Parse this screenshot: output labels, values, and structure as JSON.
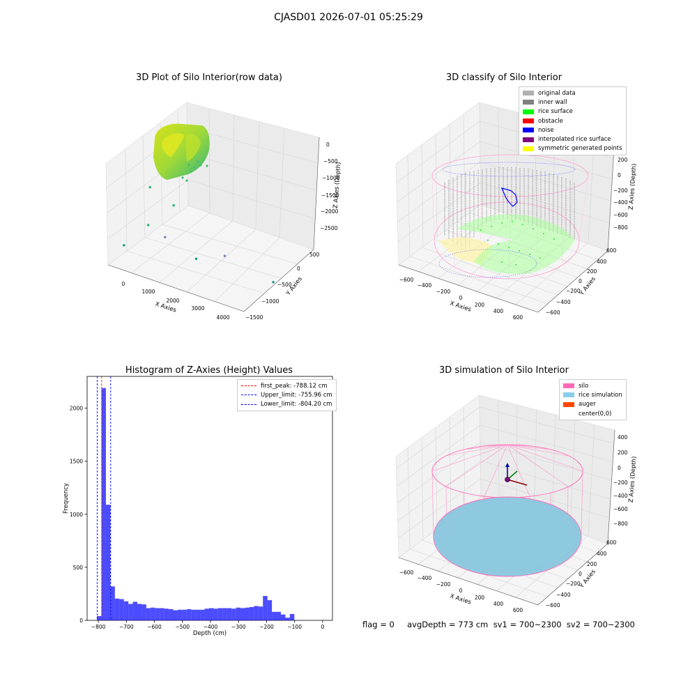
{
  "figure_title": "CJASD01 2026-07-01 05:25:29",
  "footer": "flag = 0     avgDepth = 773 cm  sv1 = 700~2300  sv2 = 700~2300",
  "chart_data": [
    {
      "type": "scatter",
      "title": "3D Plot of Silo Interior(row data)",
      "xlabel": "X Axies",
      "ylabel": "Y Axies",
      "zlabel": "Z Axies (Depth)",
      "x_ticks": [
        "0",
        "1000",
        "2000",
        "3000",
        "4000"
      ],
      "y_ticks": [
        "500",
        "0",
        "−500",
        "−1000",
        "−1500"
      ],
      "z_ticks": [
        "0",
        "−500",
        "−1000",
        "−1500",
        "−2000",
        "−2500"
      ],
      "colormap": "viridis",
      "outliers": [
        {
          "x": 700,
          "y": 300,
          "z": -2350
        },
        {
          "x": 1300,
          "y": 150,
          "z": -1700
        },
        {
          "x": 1600,
          "y": 0,
          "z": -1900
        },
        {
          "x": 2100,
          "y": -300,
          "z": -2250
        },
        {
          "x": 3000,
          "y": -400,
          "z": -2000
        },
        {
          "x": 4200,
          "y": -700,
          "z": -2350
        },
        {
          "x": 2200,
          "y": 100,
          "z": -1050
        },
        {
          "x": 1500,
          "y": 200,
          "z": -750
        }
      ]
    },
    {
      "type": "scatter",
      "title": "3D classify of Silo Interior",
      "xlabel": "X Axies",
      "ylabel": "Y Axies",
      "zlabel": "Z Axies (Depth)",
      "x_ticks": [
        "−600",
        "−400",
        "−200",
        "0",
        "200",
        "400",
        "600"
      ],
      "y_ticks": [
        "600",
        "400",
        "200",
        "0",
        "−200",
        "−400",
        "−600"
      ],
      "z_ticks": [
        "200",
        "0",
        "−200",
        "−400",
        "−600",
        "−800"
      ],
      "legend": [
        {
          "label": "original data",
          "color": "#b0b0b0"
        },
        {
          "label": "inner wall",
          "color": "#808080"
        },
        {
          "label": "rice surface",
          "color": "#00ff00"
        },
        {
          "label": "obstacle",
          "color": "#ff0000"
        },
        {
          "label": "noise",
          "color": "#0000ff"
        },
        {
          "label": "interpolated rice surface",
          "color": "#800080"
        },
        {
          "label": "symmetric generated points",
          "color": "#ffff00"
        }
      ]
    },
    {
      "type": "bar",
      "title": "Histogram of Z-Axies (Height) Values",
      "xlabel": "Depth (cm)",
      "ylabel": "Frequency",
      "xlim": [
        -840,
        35
      ],
      "ylim": [
        0,
        2300
      ],
      "x_ticks": [
        -800,
        -700,
        -600,
        -500,
        -400,
        -300,
        -200,
        -100,
        0
      ],
      "y_ticks": [
        0,
        500,
        1000,
        1500,
        2000
      ],
      "bar_color": "#0000ff",
      "bins_start": -805,
      "bin_width": 16,
      "values": [
        40,
        2190,
        1090,
        320,
        205,
        200,
        180,
        155,
        175,
        155,
        150,
        115,
        120,
        115,
        115,
        110,
        105,
        95,
        100,
        100,
        105,
        100,
        100,
        100,
        110,
        115,
        110,
        115,
        115,
        115,
        110,
        120,
        115,
        120,
        125,
        135,
        130,
        230,
        190,
        80,
        80,
        55,
        25,
        60
      ],
      "vlines": [
        {
          "label": "first_peak: -788.12 cm",
          "x": -788.12,
          "color": "#ff0000"
        },
        {
          "label": "Upper_limit: -755.96 cm",
          "x": -755.96,
          "color": "#0000ff"
        },
        {
          "label": "Lower_limit: -804.20 cm",
          "x": -804.2,
          "color": "#0000ff"
        }
      ]
    },
    {
      "type": "scatter",
      "title": "3D simulation of Silo Interior",
      "xlabel": "X Axies",
      "ylabel": "Y Axies",
      "zlabel": "Z Axies (Depth)",
      "x_ticks": [
        "−600",
        "−400",
        "−200",
        "0",
        "200",
        "400",
        "600"
      ],
      "y_ticks": [
        "600",
        "400",
        "200",
        "0",
        "−200",
        "−400",
        "−600"
      ],
      "z_ticks": [
        "400",
        "200",
        "0",
        "−200",
        "−400",
        "−600",
        "−800"
      ],
      "legend": [
        {
          "label": "silo",
          "color": "#ff69b4"
        },
        {
          "label": "rice simulation",
          "color": "#87ceeb"
        },
        {
          "label": "auger",
          "color": "#ff4500"
        },
        {
          "label": "center(0,0)",
          "color": "#ffffff"
        }
      ]
    }
  ]
}
